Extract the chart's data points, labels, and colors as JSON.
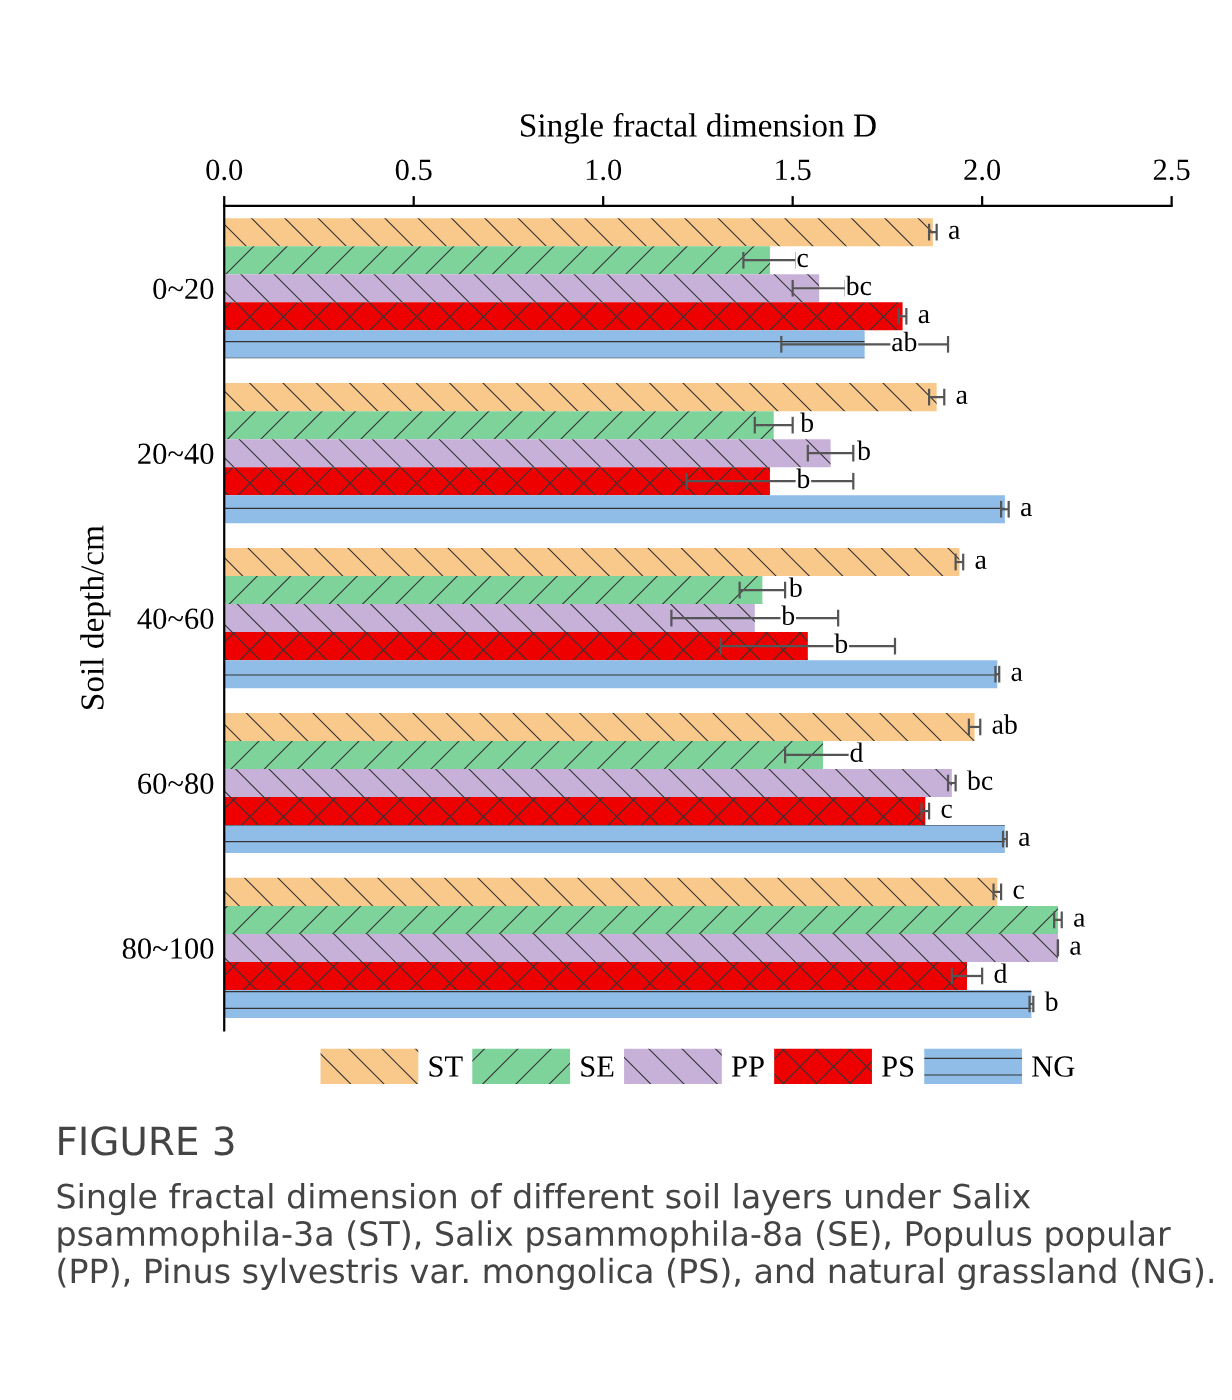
{
  "chart_data": {
    "type": "bar",
    "orientation": "horizontal",
    "xlabel": "Single fractal dimension D",
    "ylabel": "Soil depth/cm",
    "categories": [
      "0~20",
      "20~40",
      "40~60",
      "60~80",
      "80~100"
    ],
    "xlim": [
      0,
      2.5
    ],
    "xticks": [
      {
        "value": 0,
        "label": "0.0"
      },
      0.5,
      {
        "value": 1,
        "label": "1.0"
      },
      1.5,
      {
        "value": 2,
        "label": "2.0"
      },
      2.5
    ],
    "grid": false,
    "legend": "bottom",
    "series": [
      {
        "name": "ST",
        "color": "#f9c98b",
        "values": [
          1.87,
          1.88,
          1.94,
          1.98,
          2.04
        ],
        "errors": [
          0.01,
          0.02,
          0.01,
          0.015,
          0.01
        ],
        "value_labels": [
          "a",
          "a",
          "a",
          "ab",
          "c"
        ]
      },
      {
        "name": "SE",
        "color": "#7dd39a",
        "values": [
          1.44,
          1.45,
          1.42,
          1.58,
          2.2
        ],
        "errors": [
          0.07,
          0.05,
          0.06,
          0.1,
          0.01
        ],
        "value_labels": [
          "c",
          "b",
          "b",
          "d",
          "a"
        ]
      },
      {
        "name": "PP",
        "color": "#c7b1d8",
        "values": [
          1.57,
          1.6,
          1.4,
          1.92,
          2.2
        ],
        "errors": [
          0.07,
          0.06,
          0.22,
          0.01,
          null
        ],
        "value_labels": [
          "bc",
          "b",
          "b",
          "bc",
          "a"
        ]
      },
      {
        "name": "PS",
        "color": "#ee0000",
        "values": [
          1.79,
          1.44,
          1.54,
          1.85,
          1.96
        ],
        "errors": [
          0.01,
          0.22,
          0.23,
          0.01,
          0.04
        ],
        "value_labels": [
          "a",
          "b",
          "b",
          "c",
          "d"
        ]
      },
      {
        "name": "NG",
        "color": "#90bde8",
        "values": [
          1.69,
          2.06,
          2.04,
          2.06,
          2.13
        ],
        "errors": [
          0.22,
          0.01,
          0.005,
          0.005,
          0.005
        ],
        "value_labels": [
          "ab",
          "a",
          "a",
          "a",
          "b"
        ]
      }
    ],
    "annotations": [
      "FIGURE 3",
      "Single fractal dimension of different soil layers under Salix psammophila-3a (ST), Salix psammophila-8a (SE), Populus popular (PP), Pinus sylvestris var. mongolica (PS), and natural grassland (NG)."
    ]
  }
}
